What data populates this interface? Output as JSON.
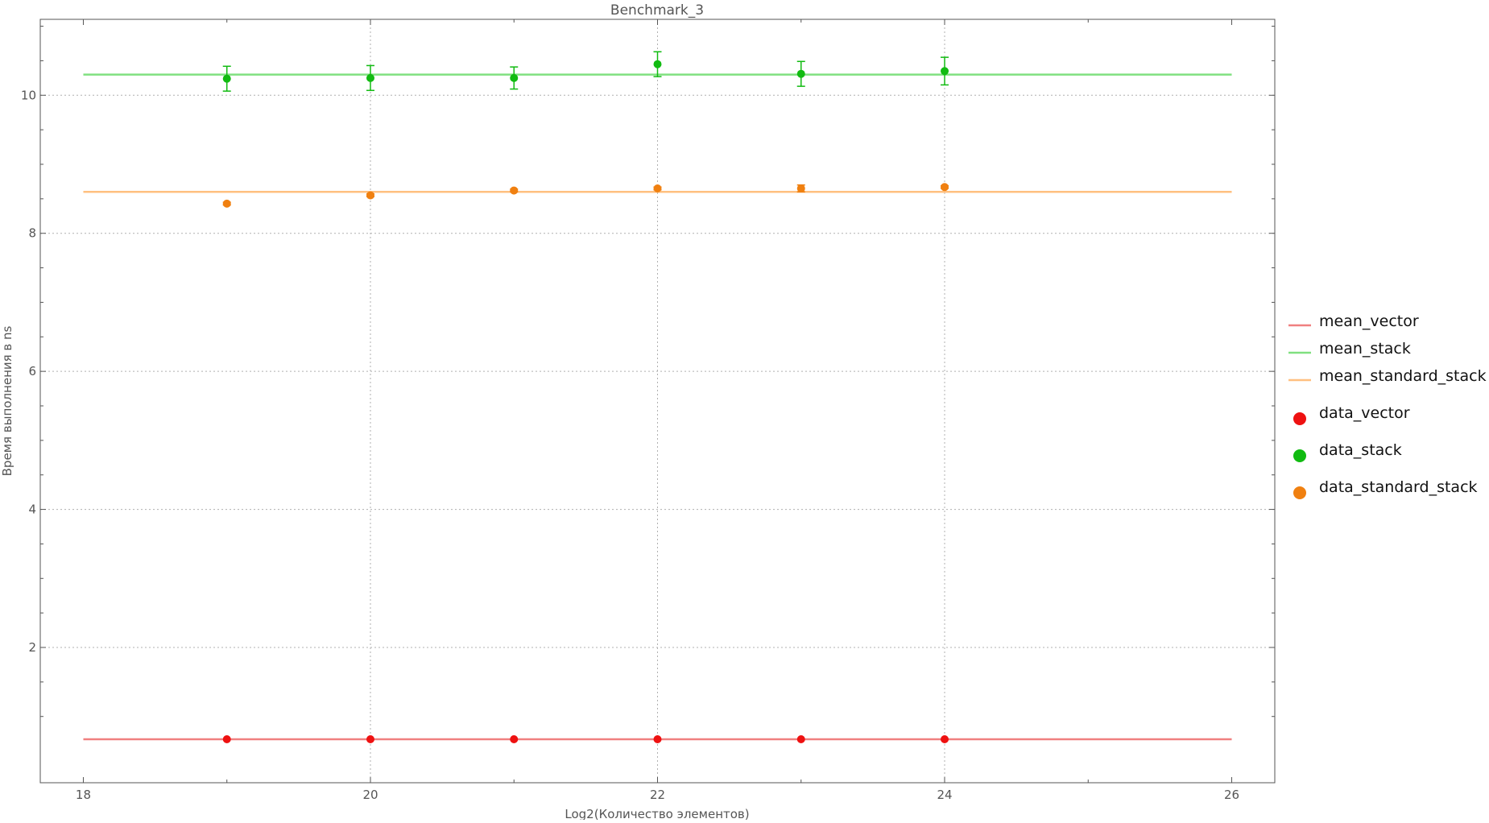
{
  "chart_data": {
    "type": "scatter",
    "title": "Benchmark_3",
    "xlabel": "Log2(Количество элементов)",
    "ylabel": "Время выполнения в ns",
    "xlim": [
      17.7,
      26.3
    ],
    "ylim": [
      0.04,
      11.1
    ],
    "x_ticks": [
      18,
      20,
      22,
      24,
      26
    ],
    "y_ticks": [
      2,
      4,
      6,
      8,
      10
    ],
    "grid": true,
    "legend_position": "right",
    "mean_lines": [
      {
        "name": "mean_vector",
        "color": "#f08080",
        "x_range": [
          18,
          26
        ],
        "y": 0.67
      },
      {
        "name": "mean_stack",
        "color": "#80e080",
        "x_range": [
          18,
          26
        ],
        "y": 10.3
      },
      {
        "name": "mean_standard_stack",
        "color": "#ffc080",
        "x_range": [
          18,
          26
        ],
        "y": 8.6
      }
    ],
    "series": [
      {
        "name": "data_vector",
        "color": "#ee1111",
        "x": [
          19,
          20,
          21,
          22,
          23,
          24
        ],
        "y": [
          0.67,
          0.67,
          0.67,
          0.67,
          0.67,
          0.67
        ],
        "err": [
          0.01,
          0.01,
          0.01,
          0.01,
          0.01,
          0.01
        ]
      },
      {
        "name": "data_stack",
        "color": "#11bb11",
        "x": [
          19,
          20,
          21,
          22,
          23,
          24
        ],
        "y": [
          10.24,
          10.25,
          10.25,
          10.45,
          10.31,
          10.35
        ],
        "err": [
          0.18,
          0.18,
          0.16,
          0.18,
          0.18,
          0.2
        ]
      },
      {
        "name": "data_standard_stack",
        "color": "#f08010",
        "x": [
          19,
          20,
          21,
          22,
          23,
          24
        ],
        "y": [
          8.43,
          8.55,
          8.62,
          8.65,
          8.65,
          8.67
        ],
        "err": [
          0.02,
          0.02,
          0.02,
          0.02,
          0.05,
          0.02
        ]
      }
    ]
  }
}
